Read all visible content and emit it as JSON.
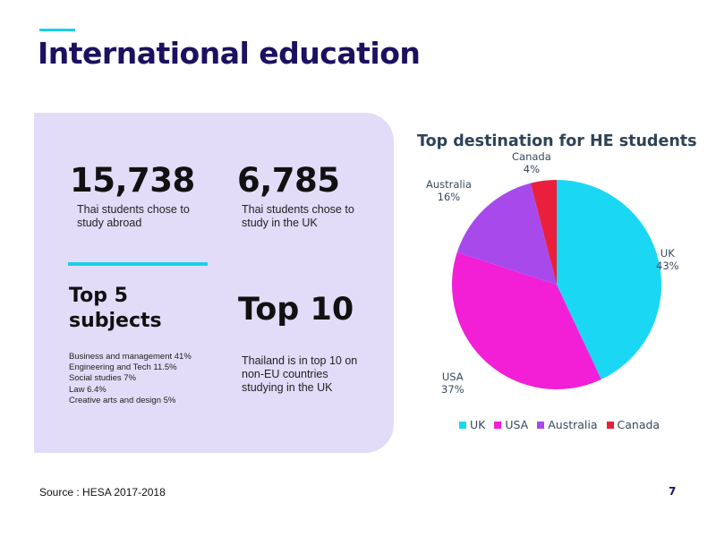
{
  "slide": {
    "title": "International education",
    "source": "Source : HESA 2017-2018",
    "page_number": "7"
  },
  "stats": {
    "abroad": {
      "value": "15,738",
      "description": "Thai students chose to study abroad"
    },
    "uk": {
      "value": "6,785",
      "description": "Thai students chose to study in the UK"
    }
  },
  "subjects": {
    "heading": "Top 5 subjects",
    "items": [
      "Business and management 41%",
      "Engineering and Tech  11.5%",
      "Social studies 7%",
      "Law 6.4%",
      "Creative arts and design 5%"
    ]
  },
  "ranking": {
    "heading": "Top 10",
    "description": "Thailand is in top 10 on non-EU countries studying in the UK"
  },
  "colors": {
    "title": "#1c1060",
    "accent_cyan": "#1ad0ec",
    "panel_bg": "#e2dcf8"
  },
  "chart_data": {
    "type": "pie",
    "title": "Top destination for HE students",
    "legend_position": "bottom",
    "series": [
      {
        "name": "UK",
        "value": 43,
        "label": "43%",
        "color": "#1ad8f4"
      },
      {
        "name": "USA",
        "value": 37,
        "label": "37%",
        "color": "#f21fd6"
      },
      {
        "name": "Australia",
        "value": 16,
        "label": "16%",
        "color": "#a849ec"
      },
      {
        "name": "Canada",
        "value": 4,
        "label": "4%",
        "color": "#ea1f3c"
      }
    ]
  }
}
